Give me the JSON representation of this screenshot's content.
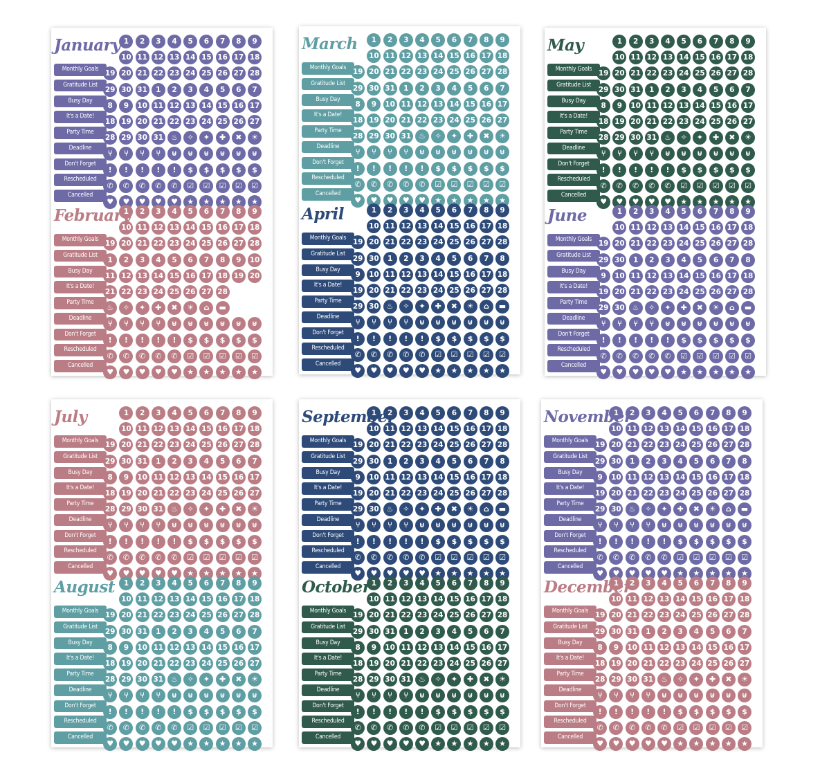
{
  "labels": [
    "Monthly Goals",
    "Gratitude List",
    "Busy Day",
    "It's a Date!",
    "Party Time",
    "Deadline",
    "Don't Forget",
    "Rescheduled",
    "Cancelled"
  ],
  "icons": [
    [
      "cake-icon",
      "party-popper-icon",
      "confetti-icon",
      "first-aid-icon",
      "tools-icon",
      "lightbulb-icon",
      "house-icon",
      "car-icon"
    ],
    [
      "utensils-icon",
      "utensils-icon",
      "utensils-icon",
      "utensils-icon",
      "shopping-cart-icon",
      "shopping-cart-icon",
      "shopping-cart-icon",
      "shopping-cart-icon",
      "shopping-cart-icon"
    ],
    [
      "exclamation-icon",
      "exclamation-icon",
      "exclamation-icon",
      "exclamation-icon",
      "exclamation-icon",
      "dollar-icon",
      "dollar-icon",
      "dollar-icon",
      "dollar-icon"
    ],
    [
      "phone-icon",
      "phone-icon",
      "phone-icon",
      "phone-icon",
      "phone-icon",
      "calendar-check-icon",
      "calendar-check-icon",
      "calendar-check-icon",
      "calendar-check-icon"
    ],
    [
      "heart-icon",
      "heart-icon",
      "heart-icon",
      "heart-icon",
      "heart-icon",
      "star-icon",
      "star-icon",
      "star-icon",
      "star-icon"
    ]
  ],
  "icon_glyphs": {
    "cake-icon": "♨",
    "party-popper-icon": "✧",
    "confetti-icon": "✦",
    "first-aid-icon": "✚",
    "tools-icon": "✖",
    "lightbulb-icon": "☀",
    "house-icon": "⌂",
    "car-icon": "▬",
    "utensils-icon": "⑂",
    "shopping-cart-icon": "⊎",
    "exclamation-icon": "!",
    "dollar-icon": "$",
    "phone-icon": "✆",
    "calendar-check-icon": "☑",
    "heart-icon": "♥",
    "star-icon": "★"
  },
  "sheets": [
    {
      "months": [
        {
          "name": "January",
          "color": "#6d6aa6",
          "days": 31
        },
        {
          "name": "February",
          "color": "#bb7d85",
          "days": 28
        }
      ]
    },
    {
      "months": [
        {
          "name": "March",
          "color": "#5f9ea3",
          "days": 31
        },
        {
          "name": "April",
          "color": "#2d4a78",
          "days": 30
        }
      ]
    },
    {
      "months": [
        {
          "name": "May",
          "color": "#2f5a4c",
          "days": 31
        },
        {
          "name": "June",
          "color": "#6d6aa6",
          "days": 30
        }
      ]
    },
    {
      "months": [
        {
          "name": "July",
          "color": "#bb7d85",
          "days": 31
        },
        {
          "name": "August",
          "color": "#5f9ea3",
          "days": 31
        }
      ]
    },
    {
      "months": [
        {
          "name": "September",
          "color": "#2d4a78",
          "days": 30
        },
        {
          "name": "October",
          "color": "#2f5a4c",
          "days": 31
        }
      ]
    },
    {
      "months": [
        {
          "name": "November",
          "color": "#6d6aa6",
          "days": 30
        },
        {
          "name": "December",
          "color": "#bb7d85",
          "days": 31
        }
      ]
    }
  ]
}
